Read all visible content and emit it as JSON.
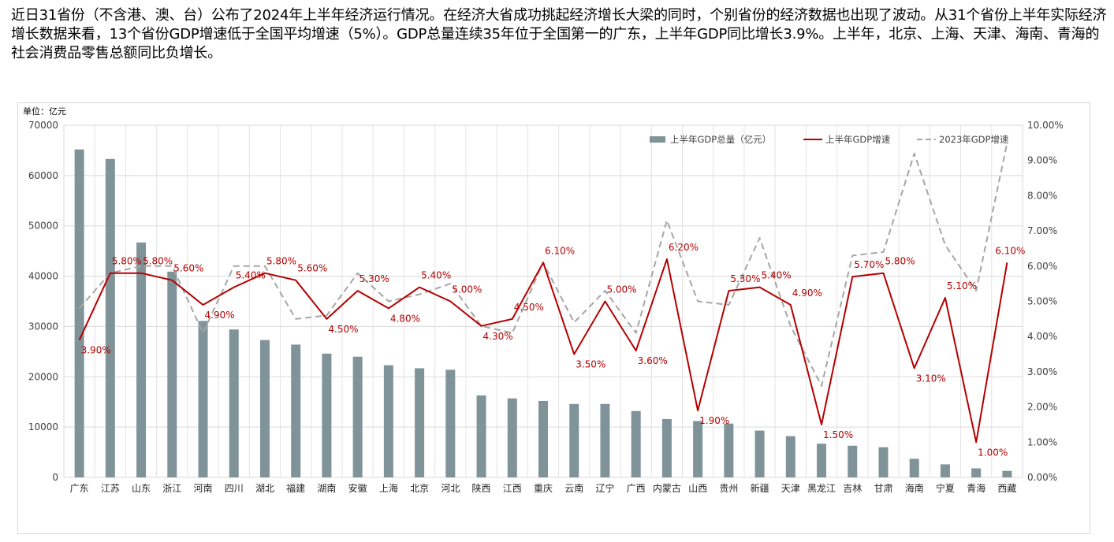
{
  "intro_text": "近日31省份（不含港、澳、台）公布了2024年上半年经济运行情况。在经济大省成功挑起经济增长大梁的同时，个别省份的经济数据也出现了波动。从31个省份上半年实际经济增长数据来看，13个省份GDP增速低于全国平均增速（5%）。GDP总量连续35年位于全国第一的广东，上半年GDP同比增长3.9%。上半年，北京、上海、天津、海南、青海的社会消费品零售总额同比负增长。",
  "chart_data": {
    "type": "bar",
    "unit_label": "单位：亿元",
    "categories": [
      "广东",
      "江苏",
      "山东",
      "浙江",
      "河南",
      "四川",
      "湖北",
      "福建",
      "湖南",
      "安徽",
      "上海",
      "北京",
      "河北",
      "陕西",
      "江西",
      "重庆",
      "云南",
      "辽宁",
      "广西",
      "内蒙古",
      "山西",
      "贵州",
      "新疆",
      "天津",
      "黑龙江",
      "吉林",
      "甘肃",
      "海南",
      "宁夏",
      "青海",
      "西藏"
    ],
    "left_axis": {
      "min": 0,
      "max": 70000,
      "step": 10000,
      "ticks": [
        "0",
        "10000",
        "20000",
        "30000",
        "40000",
        "50000",
        "60000",
        "70000"
      ]
    },
    "right_axis": {
      "min": 0,
      "max": 10,
      "step": 1,
      "ticks": [
        "0.00%",
        "1.00%",
        "2.00%",
        "3.00%",
        "4.00%",
        "5.00%",
        "6.00%",
        "7.00%",
        "8.00%",
        "9.00%",
        "10.00%"
      ]
    },
    "grid": true,
    "legend_position": "top-right",
    "series": [
      {
        "name": "上半年GDP总量（亿元）",
        "kind": "bar",
        "axis": "left",
        "color": "#7f9399",
        "values": [
          65200,
          63300,
          46700,
          40900,
          31100,
          29400,
          27300,
          26400,
          24600,
          24000,
          22300,
          21700,
          21400,
          16300,
          15700,
          15200,
          14600,
          14600,
          13200,
          11600,
          11200,
          10700,
          9300,
          8200,
          6700,
          6300,
          6000,
          3700,
          2600,
          1800,
          1300
        ]
      },
      {
        "name": "上半年GDP增速",
        "kind": "line",
        "axis": "right",
        "color": "#b50000",
        "values": [
          3.9,
          5.8,
          5.8,
          5.6,
          4.9,
          5.4,
          5.8,
          5.6,
          4.5,
          5.3,
          4.8,
          5.4,
          5.0,
          4.3,
          4.5,
          6.1,
          3.5,
          5.0,
          3.6,
          6.2,
          1.9,
          5.3,
          5.4,
          4.9,
          1.5,
          5.7,
          5.8,
          3.1,
          5.1,
          1.0,
          6.1
        ],
        "labels": [
          "3.90%",
          "5.80%",
          "5.80%",
          "5.60%",
          "4.90%",
          "5.40%",
          "5.80%",
          "5.60%",
          "4.50%",
          "5.30%",
          "4.80%",
          "5.40%",
          "5.00%",
          "4.30%",
          "4.50%",
          "6.10%",
          "3.50%",
          "5.00%",
          "3.60%",
          "6.20%",
          "1.90%",
          "5.30%",
          "5.40%",
          "4.90%",
          "1.50%",
          "5.70%",
          "5.80%",
          "3.10%",
          "5.10%",
          "1.00%",
          "6.10%"
        ]
      },
      {
        "name": "2023年GDP增速",
        "kind": "line",
        "axis": "right",
        "color": "#a6a6a6",
        "dashed": true,
        "values": [
          4.8,
          5.8,
          6.0,
          6.0,
          4.1,
          6.0,
          6.0,
          4.5,
          4.6,
          5.8,
          5.0,
          5.2,
          5.5,
          4.3,
          4.1,
          6.1,
          4.4,
          5.3,
          4.1,
          7.3,
          5.0,
          4.9,
          6.8,
          4.3,
          2.6,
          6.3,
          6.4,
          9.2,
          6.6,
          5.3,
          9.5
        ]
      }
    ]
  }
}
